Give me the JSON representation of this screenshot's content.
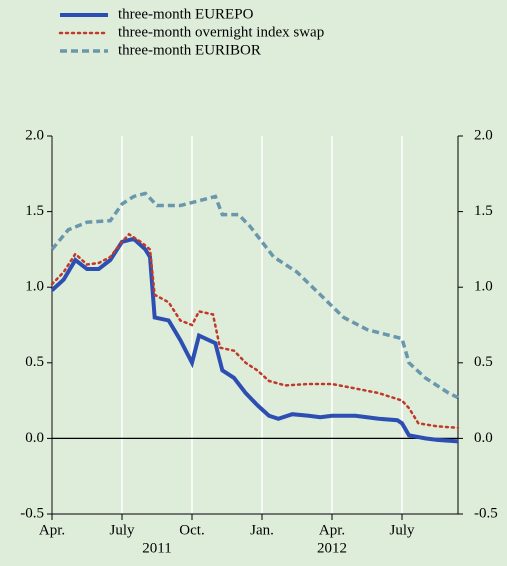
{
  "chart_data": {
    "type": "line",
    "series": [
      {
        "name": "three-month EUREPO",
        "color": "#2d4fb3",
        "dash": "solid",
        "x": [
          0,
          0.5,
          1,
          1.5,
          2,
          2.5,
          3,
          3.5,
          4,
          4.2,
          4.4,
          5,
          5.5,
          6,
          6.3,
          7,
          7.3,
          7.8,
          8.3,
          8.8,
          9.3,
          9.7,
          10.3,
          11,
          11.5,
          12,
          13,
          14,
          14.8,
          15,
          15.3,
          16,
          16.5,
          17.4
        ],
        "values": [
          0.98,
          1.05,
          1.18,
          1.12,
          1.12,
          1.18,
          1.3,
          1.32,
          1.25,
          1.2,
          0.8,
          0.78,
          0.65,
          0.5,
          0.68,
          0.63,
          0.45,
          0.4,
          0.3,
          0.22,
          0.15,
          0.13,
          0.16,
          0.15,
          0.14,
          0.15,
          0.15,
          0.13,
          0.12,
          0.1,
          0.02,
          0.0,
          -0.01,
          -0.02
        ]
      },
      {
        "name": "three-month overnight index swap",
        "color": "#c0392b",
        "dash": "dotted",
        "x": [
          0,
          0.5,
          1,
          1.5,
          2,
          2.5,
          3,
          3.3,
          3.8,
          4.2,
          4.4,
          5,
          5.5,
          6,
          6.3,
          6.9,
          7.2,
          7.8,
          8.3,
          8.8,
          9.3,
          10,
          11,
          12,
          13,
          14,
          15,
          15.3,
          15.7,
          16.5,
          17.4
        ],
        "values": [
          1.02,
          1.1,
          1.22,
          1.15,
          1.16,
          1.2,
          1.3,
          1.35,
          1.3,
          1.25,
          0.95,
          0.9,
          0.78,
          0.75,
          0.84,
          0.82,
          0.6,
          0.58,
          0.5,
          0.45,
          0.38,
          0.35,
          0.36,
          0.36,
          0.33,
          0.3,
          0.25,
          0.2,
          0.1,
          0.08,
          0.07
        ]
      },
      {
        "name": "three-month EURIBOR",
        "color": "#6a97ad",
        "dash": "dashed",
        "x": [
          0,
          0.7,
          1.5,
          2.5,
          3,
          3.5,
          4,
          4.5,
          5.5,
          6,
          7,
          7.3,
          8,
          8.5,
          9.5,
          10.5,
          11.5,
          12.5,
          13.5,
          14.5,
          15,
          15.3,
          16,
          17,
          17.4
        ],
        "values": [
          1.25,
          1.38,
          1.43,
          1.44,
          1.55,
          1.6,
          1.62,
          1.54,
          1.54,
          1.56,
          1.6,
          1.48,
          1.48,
          1.4,
          1.2,
          1.1,
          0.95,
          0.8,
          0.72,
          0.68,
          0.66,
          0.5,
          0.4,
          0.3,
          0.27
        ]
      }
    ],
    "xlim": [
      0,
      17.4
    ],
    "xticks": [
      {
        "value": 0,
        "label": "Apr."
      },
      {
        "value": 3,
        "label": "July"
      },
      {
        "value": 6,
        "label": "Oct."
      },
      {
        "value": 9,
        "label": "Jan."
      },
      {
        "value": 12,
        "label": "Apr."
      },
      {
        "value": 15,
        "label": "July"
      }
    ],
    "years": [
      "2011",
      "2012"
    ],
    "ylim": [
      -0.5,
      2.0
    ],
    "yticks": [
      {
        "value": -0.5,
        "label": "-0.5"
      },
      {
        "value": 0,
        "label": "0.0"
      },
      {
        "value": 0.5,
        "label": "0.5"
      },
      {
        "value": 1,
        "label": "1.0"
      },
      {
        "value": 1.5,
        "label": "1.5"
      },
      {
        "value": 2,
        "label": "2.0"
      }
    ],
    "y2lim": [
      -0.5,
      2.0
    ],
    "y2ticks": [
      {
        "value": -0.5,
        "label": "-0.5"
      },
      {
        "value": 0,
        "label": "0.0"
      },
      {
        "value": 0.5,
        "label": "0.5"
      },
      {
        "value": 1,
        "label": "1.0"
      },
      {
        "value": 1.5,
        "label": "1.5"
      },
      {
        "value": 2,
        "label": "2.0"
      }
    ],
    "grid": true,
    "legend": "top-left"
  }
}
